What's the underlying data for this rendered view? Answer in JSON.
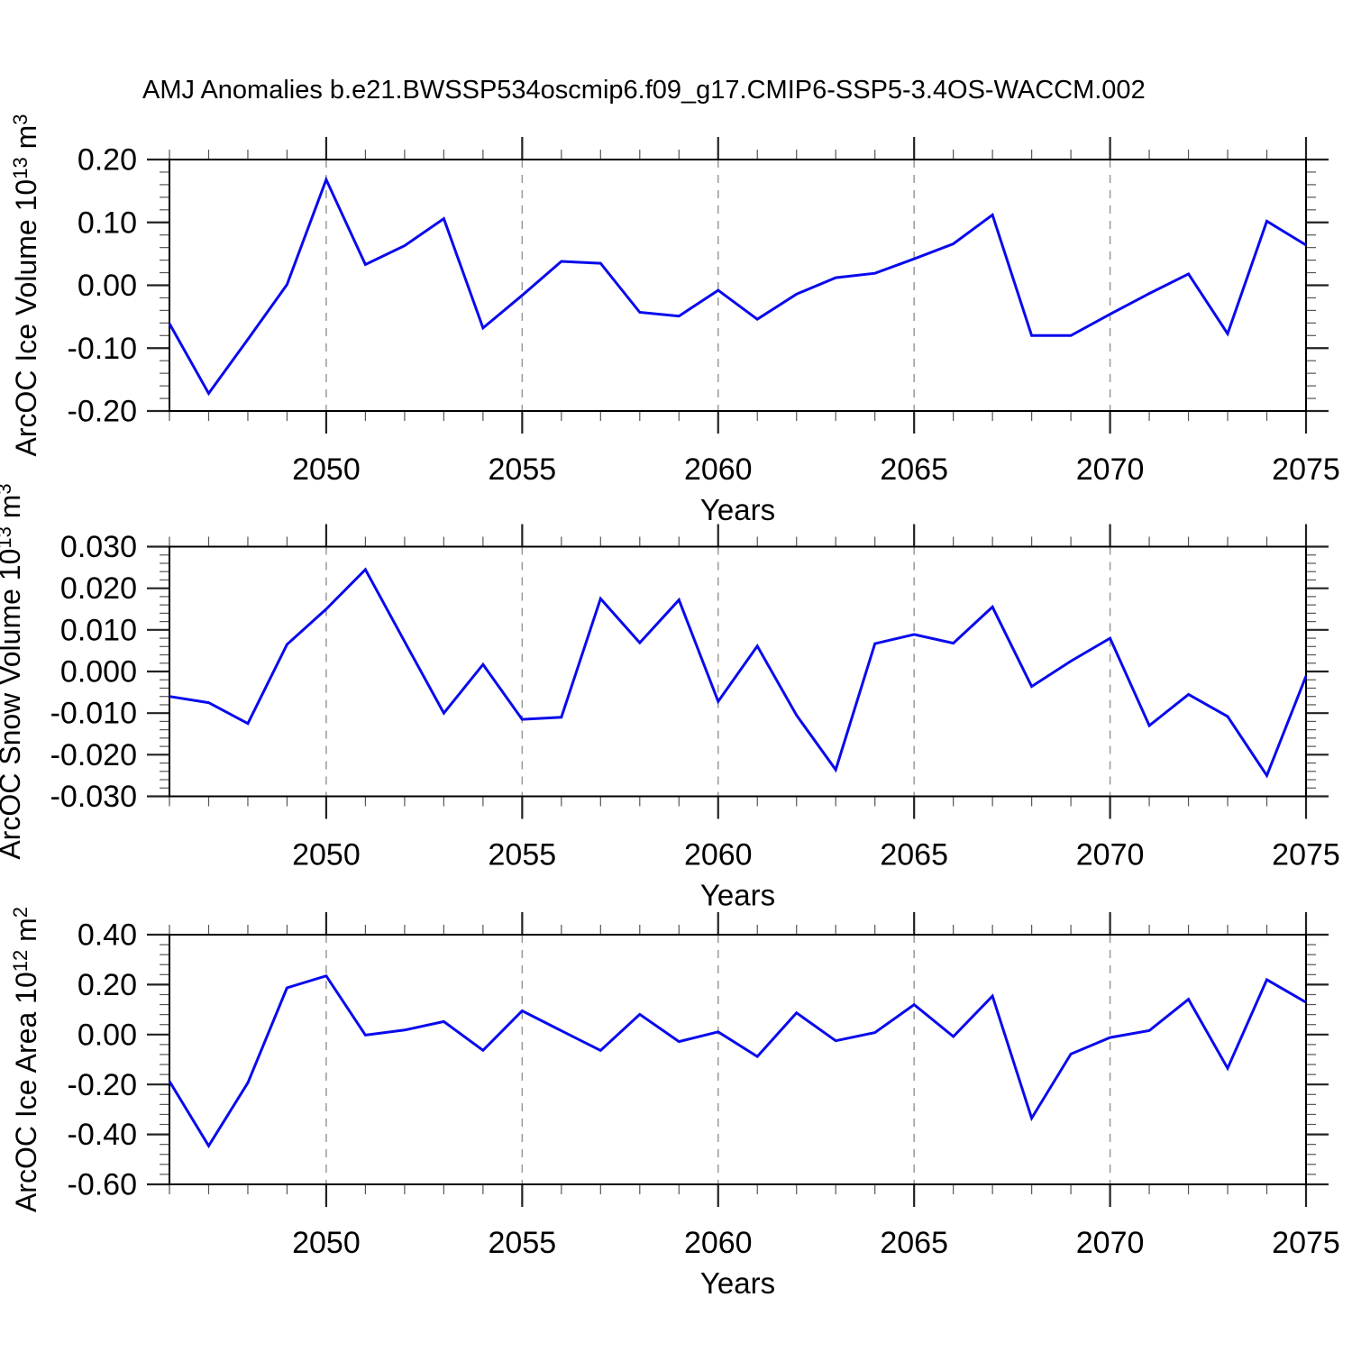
{
  "title": "AMJ Anomalies b.e21.BWSSP534oscmip6.f09_g17.CMIP6-SSP5-3.4OS-WACCM.002",
  "colors": {
    "line": "#0909ee",
    "grid": "#999999",
    "frame": "#000000",
    "major_tick": "#222222",
    "minor_tick": "#555555"
  },
  "x_axis": {
    "label": "Years",
    "range": [
      2046,
      2075
    ],
    "tick_labels": [
      "2050",
      "2055",
      "2060",
      "2065",
      "2070",
      "2075"
    ],
    "gridline_years": [
      2050,
      2055,
      2060,
      2065,
      2070
    ]
  },
  "chart_data": [
    {
      "type": "line",
      "ylabel": "ArcOC Ice Volume 10^13 m^3",
      "ylabel_parts": [
        [
          "ArcOC Ice Volume 10",
          false
        ],
        [
          "13",
          true
        ],
        [
          " m",
          false
        ],
        [
          "3",
          true
        ]
      ],
      "xlabel": "Years",
      "ylim": [
        -0.2,
        0.2
      ],
      "y_major_step": 0.1,
      "y_minor_step": 0.02,
      "y_tick_labels": [
        "0.20",
        "0.10",
        "0.00",
        "-0.10",
        "-0.20"
      ],
      "x": [
        2046,
        2047,
        2048,
        2049,
        2050,
        2051,
        2052,
        2053,
        2054,
        2055,
        2056,
        2057,
        2058,
        2059,
        2060,
        2061,
        2062,
        2063,
        2064,
        2065,
        2066,
        2067,
        2068,
        2069,
        2070,
        2071,
        2072,
        2073,
        2074,
        2075
      ],
      "values": [
        -0.061,
        -0.172,
        -0.086,
        0.001,
        0.168,
        0.033,
        0.063,
        0.106,
        -0.068,
        -0.016,
        0.038,
        0.035,
        -0.043,
        -0.049,
        -0.008,
        -0.054,
        -0.014,
        0.012,
        0.019,
        0.042,
        0.066,
        0.112,
        -0.08,
        -0.08,
        -0.046,
        -0.013,
        0.018,
        -0.077,
        0.102,
        0.064
      ]
    },
    {
      "type": "line",
      "ylabel": "ArcOC Snow Volume 10^13 m^3",
      "ylabel_parts": [
        [
          "ArcOC Snow Volume 10",
          false
        ],
        [
          "13",
          true
        ],
        [
          " m",
          false
        ],
        [
          "3",
          true
        ]
      ],
      "xlabel": "Years",
      "ylim": [
        -0.03,
        0.03
      ],
      "y_major_step": 0.01,
      "y_minor_step": 0.002,
      "y_tick_labels": [
        "0.030",
        "0.020",
        "0.010",
        "0.000",
        "-0.010",
        "-0.020",
        "-0.030"
      ],
      "x": [
        2046,
        2047,
        2048,
        2049,
        2050,
        2051,
        2052,
        2053,
        2054,
        2055,
        2056,
        2057,
        2058,
        2059,
        2060,
        2061,
        2062,
        2063,
        2064,
        2065,
        2066,
        2067,
        2068,
        2069,
        2070,
        2071,
        2072,
        2073,
        2074,
        2075
      ],
      "values": [
        -0.006,
        -0.0075,
        -0.0125,
        0.0065,
        0.015,
        0.0245,
        0.0072,
        -0.01,
        0.0017,
        -0.0115,
        -0.011,
        0.0175,
        0.0069,
        0.0172,
        -0.0072,
        0.0061,
        -0.0105,
        -0.0236,
        0.0067,
        0.0089,
        0.0068,
        0.0155,
        -0.0036,
        0.0025,
        0.008,
        -0.013,
        -0.0055,
        -0.0108,
        -0.025,
        -0.0011
      ]
    },
    {
      "type": "line",
      "ylabel": "ArcOC Ice Area 10^12 m^2",
      "ylabel_parts": [
        [
          "ArcOC Ice Area 10",
          false
        ],
        [
          "12",
          true
        ],
        [
          " m",
          false
        ],
        [
          "2",
          true
        ]
      ],
      "xlabel": "Years",
      "ylim": [
        -0.6,
        0.4
      ],
      "y_major_step": 0.2,
      "y_minor_step": 0.04,
      "y_tick_labels": [
        "0.40",
        "0.20",
        "0.00",
        "-0.20",
        "-0.40",
        "-0.60"
      ],
      "x": [
        2046,
        2047,
        2048,
        2049,
        2050,
        2051,
        2052,
        2053,
        2054,
        2055,
        2056,
        2057,
        2058,
        2059,
        2060,
        2061,
        2062,
        2063,
        2064,
        2065,
        2066,
        2067,
        2068,
        2069,
        2070,
        2071,
        2072,
        2073,
        2074,
        2075
      ],
      "values": [
        -0.187,
        -0.446,
        -0.193,
        0.187,
        0.235,
        -0.002,
        0.018,
        0.052,
        -0.063,
        0.095,
        0.015,
        -0.064,
        0.081,
        -0.028,
        0.011,
        -0.088,
        0.087,
        -0.025,
        0.008,
        0.12,
        -0.008,
        0.154,
        -0.335,
        -0.078,
        -0.012,
        0.016,
        0.141,
        -0.135,
        0.22,
        0.129
      ]
    }
  ]
}
